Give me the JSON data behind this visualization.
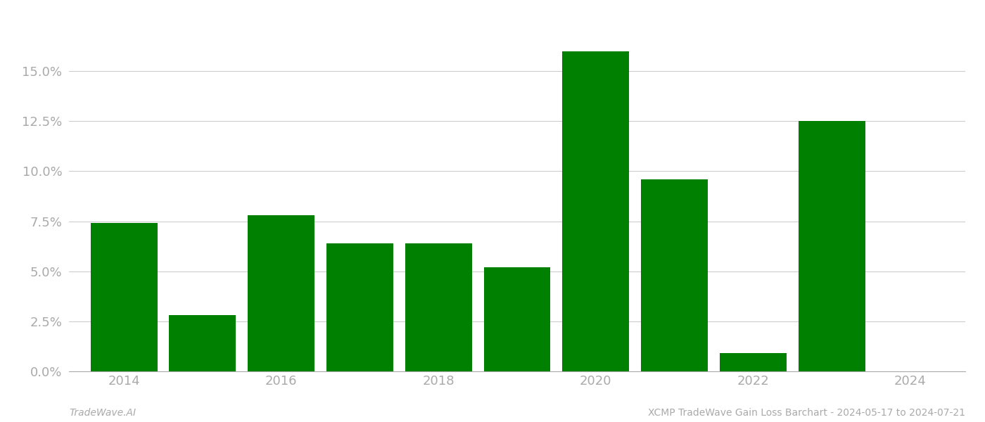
{
  "years": [
    2014,
    2015,
    2016,
    2017,
    2018,
    2019,
    2020,
    2021,
    2022,
    2023
  ],
  "values": [
    0.074,
    0.028,
    0.078,
    0.064,
    0.064,
    0.052,
    0.16,
    0.096,
    0.009,
    0.125
  ],
  "bar_color": "#008000",
  "ylim": [
    0,
    0.175
  ],
  "yticks": [
    0.0,
    0.025,
    0.05,
    0.075,
    0.1,
    0.125,
    0.15
  ],
  "xticks": [
    2014,
    2016,
    2018,
    2020,
    2022,
    2024
  ],
  "xlim": [
    2013.3,
    2024.7
  ],
  "bar_width": 0.85,
  "footer_left": "TradeWave.AI",
  "footer_right": "XCMP TradeWave Gain Loss Barchart - 2024-05-17 to 2024-07-21",
  "bg_color": "#ffffff",
  "grid_color": "#cccccc",
  "tick_color": "#aaaaaa",
  "footer_fontsize": 10,
  "tick_fontsize": 13
}
